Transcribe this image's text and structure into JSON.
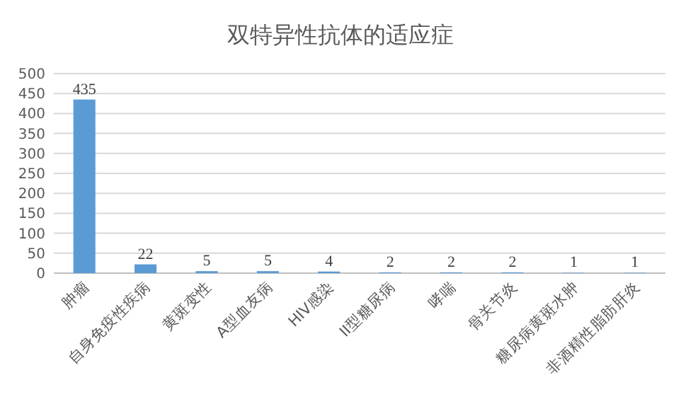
{
  "chart_data": {
    "type": "bar",
    "title": "双特异性抗体的适应症",
    "categories": [
      "肿瘤",
      "自身免疫性疾病",
      "黄斑变性",
      "A型血友病",
      "HIV感染",
      "II型糖尿病",
      "哮喘",
      "骨关节炎",
      "糖尿病黄斑水肿",
      "非酒精性脂肪肝炎"
    ],
    "values": [
      435,
      22,
      5,
      5,
      4,
      2,
      2,
      2,
      1,
      1
    ],
    "color": "#5b9bd5",
    "ylim": [
      0,
      500
    ],
    "yticks": [
      0,
      50,
      100,
      150,
      200,
      250,
      300,
      350,
      400,
      450,
      500
    ],
    "grid": "y",
    "data_labels": true
  }
}
